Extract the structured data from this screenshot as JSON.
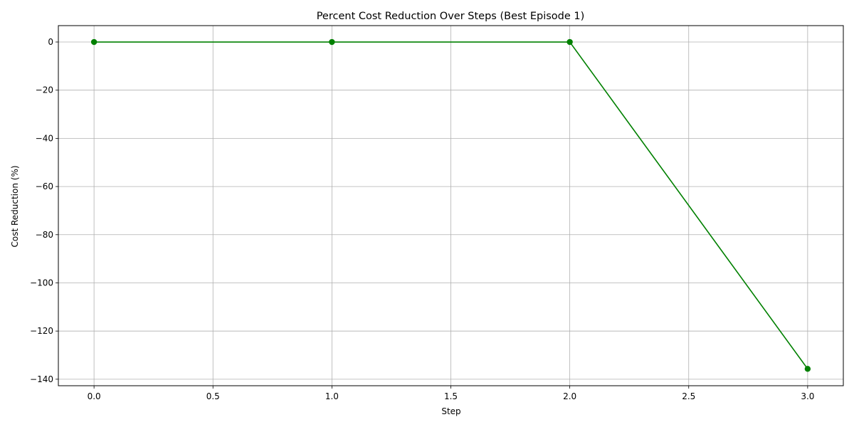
{
  "chart_data": {
    "type": "line",
    "title": "Percent Cost Reduction Over Steps (Best Episode 1)",
    "xlabel": "Step",
    "ylabel": "Cost Reduction (%)",
    "xlim": [
      -0.15,
      3.15
    ],
    "ylim": [
      -142.7,
      6.8
    ],
    "x_ticks": [
      0.0,
      0.5,
      1.0,
      1.5,
      2.0,
      2.5,
      3.0
    ],
    "x_tick_labels": [
      "0.0",
      "0.5",
      "1.0",
      "1.5",
      "2.0",
      "2.5",
      "3.0"
    ],
    "y_ticks": [
      0,
      -20,
      -40,
      -60,
      -80,
      -100,
      -120,
      -140
    ],
    "y_tick_labels": [
      "0",
      "−20",
      "−40",
      "−60",
      "−80",
      "−100",
      "−120",
      "−140"
    ],
    "grid": true,
    "series": [
      {
        "color": "#008000",
        "marker": "circle",
        "x": [
          0,
          1,
          2,
          3
        ],
        "y": [
          0,
          0,
          0,
          -135.7
        ]
      }
    ]
  }
}
